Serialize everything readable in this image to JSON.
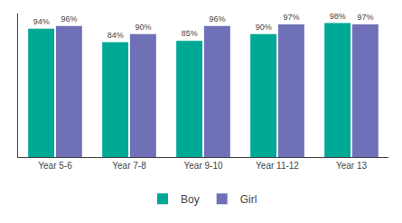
{
  "chart_data": {
    "type": "bar",
    "categories": [
      "Year 5-6",
      "Year 7-8",
      "Year 9-10",
      "Year 11-12",
      "Year 13"
    ],
    "series": [
      {
        "name": "Boy",
        "color": "#00a896",
        "values": [
          94,
          84,
          85,
          90,
          98
        ],
        "value_labels": [
          "94%",
          "84%",
          "85%",
          "90%",
          "98%"
        ]
      },
      {
        "name": "Girl",
        "color": "#7070b8",
        "values": [
          96,
          90,
          96,
          97,
          97
        ],
        "value_labels": [
          "96%",
          "90%",
          "96%",
          "97%",
          "97%"
        ]
      }
    ],
    "ylim": [
      0,
      105
    ],
    "grid": false,
    "legend": "bottom",
    "data_labels": true,
    "tick_labels": "x"
  }
}
